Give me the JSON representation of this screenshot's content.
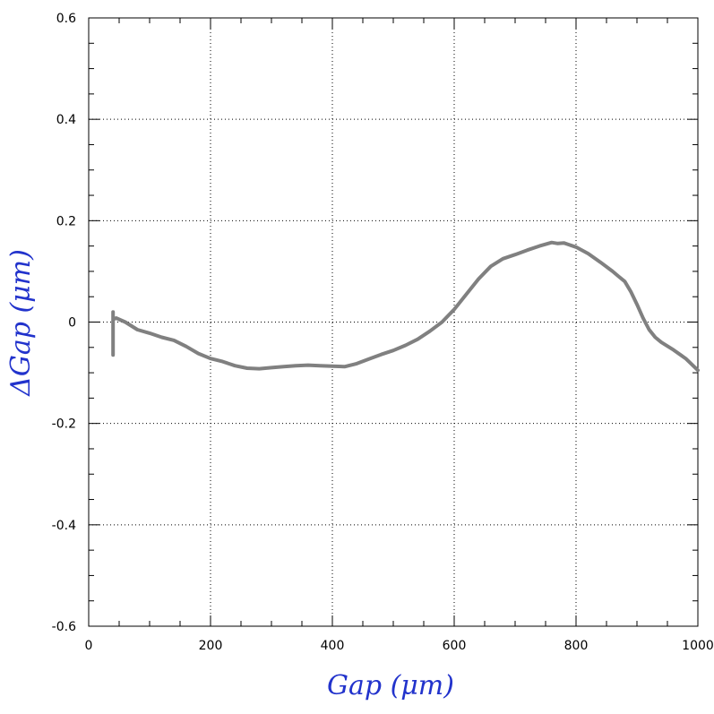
{
  "chart_data": {
    "type": "line",
    "xlabel": "Gap  (μm)",
    "ylabel": "ΔGap  (μm)",
    "xlim": [
      0,
      1000
    ],
    "ylim": [
      -0.6,
      0.6
    ],
    "x_ticks": [
      0,
      200,
      400,
      600,
      800,
      1000
    ],
    "x_tick_labels": [
      "0",
      "200",
      "400",
      "600",
      "800",
      "1000"
    ],
    "y_ticks": [
      -0.6,
      -0.4,
      -0.2,
      0,
      0.2,
      0.4,
      0.6
    ],
    "y_tick_labels": [
      "-0.6",
      "-0.4",
      "-0.2",
      "0",
      "0.2",
      "0.4",
      "0.6"
    ],
    "grid": true,
    "colors": {
      "axis_title": "#2233cc",
      "line": "#808080",
      "grid": "#000000"
    },
    "series": [
      {
        "x": [
          40,
          40,
          40,
          45,
          60,
          80,
          100,
          120,
          140,
          160,
          180,
          200,
          220,
          240,
          260,
          280,
          300,
          320,
          340,
          360,
          380,
          400,
          420,
          440,
          460,
          480,
          500,
          520,
          540,
          560,
          580,
          600,
          620,
          640,
          660,
          680,
          700,
          720,
          740,
          760,
          770,
          780,
          800,
          820,
          840,
          860,
          870,
          880,
          890,
          900,
          910,
          920,
          930,
          940,
          960,
          980,
          1000
        ],
        "y": [
          -0.065,
          0.02,
          0.005,
          0.008,
          0.0,
          -0.015,
          -0.022,
          -0.03,
          -0.036,
          -0.048,
          -0.062,
          -0.072,
          -0.078,
          -0.086,
          -0.091,
          -0.092,
          -0.09,
          -0.088,
          -0.086,
          -0.085,
          -0.086,
          -0.087,
          -0.088,
          -0.082,
          -0.073,
          -0.064,
          -0.056,
          -0.046,
          -0.034,
          -0.018,
          0.0,
          0.025,
          0.055,
          0.085,
          0.11,
          0.125,
          0.133,
          0.142,
          0.15,
          0.157,
          0.155,
          0.156,
          0.148,
          0.135,
          0.118,
          0.1,
          0.09,
          0.08,
          0.06,
          0.035,
          0.008,
          -0.015,
          -0.03,
          -0.04,
          -0.055,
          -0.072,
          -0.095
        ]
      }
    ]
  }
}
